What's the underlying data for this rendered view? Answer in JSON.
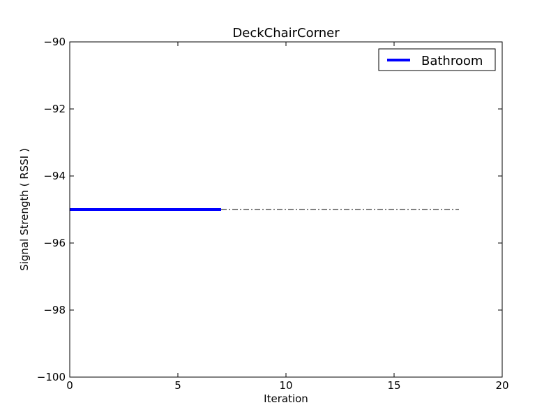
{
  "chart_data": {
    "type": "line",
    "title": "DeckChairCorner",
    "xlabel": "Iteration",
    "ylabel": "Signal Strength  ( RSSI )",
    "xlim": [
      0,
      20
    ],
    "ylim": [
      -100,
      -90
    ],
    "xticks": [
      0,
      5,
      10,
      15,
      20
    ],
    "yticks": [
      -90,
      -92,
      -94,
      -96,
      -98,
      -100
    ],
    "xtick_labels": [
      "0",
      "5",
      "10",
      "15",
      "20"
    ],
    "ytick_labels": [
      "−90",
      "−92",
      "−94",
      "−96",
      "−98",
      "−100"
    ],
    "grid": false,
    "legend_position": "top-right",
    "series": [
      {
        "name": "Bathroom",
        "style": "solid",
        "color": "#0000ff",
        "x": [
          0,
          1,
          2,
          3,
          4,
          5,
          6,
          7
        ],
        "y": [
          -95,
          -95,
          -95,
          -95,
          -95,
          -95,
          -95,
          -95
        ]
      },
      {
        "style": "dashdot",
        "color": "#000000",
        "x": [
          7,
          8,
          9,
          10,
          11,
          12,
          13,
          14,
          15,
          16,
          17,
          18
        ],
        "y": [
          -95,
          -95,
          -95,
          -95,
          -95,
          -95,
          -95,
          -95,
          -95,
          -95,
          -95,
          -95
        ]
      }
    ]
  }
}
